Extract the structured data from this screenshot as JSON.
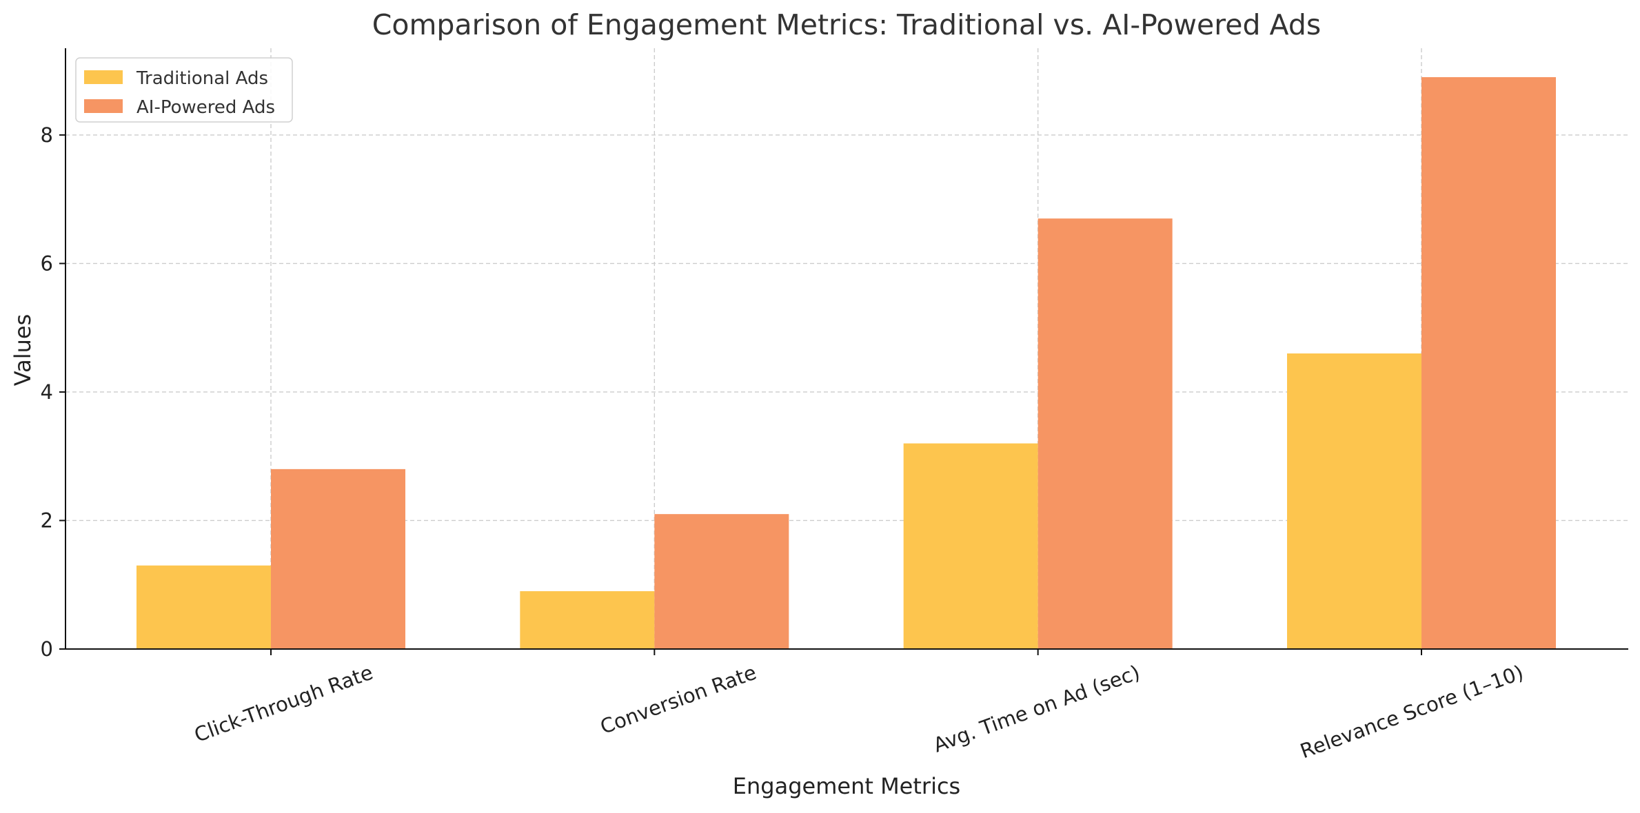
{
  "chart_data": {
    "type": "bar",
    "title": "Comparison of Engagement Metrics: Traditional vs. AI-Powered Ads",
    "xlabel": "Engagement Metrics",
    "ylabel": "Values",
    "categories": [
      "Click-Through Rate",
      "Conversion Rate",
      "Avg. Time on Ad (sec)",
      "Relevance Score (1–10)"
    ],
    "series": [
      {
        "name": "Traditional Ads",
        "values": [
          1.3,
          0.9,
          3.2,
          4.6
        ],
        "color": "#FDC54E"
      },
      {
        "name": "AI-Powered Ads",
        "values": [
          2.8,
          2.1,
          6.7,
          8.9
        ],
        "color": "#F69563"
      }
    ],
    "yticks": [
      0,
      2,
      4,
      6,
      8
    ],
    "ylim": [
      0,
      9.35
    ],
    "grid": true,
    "legend_position": "top-left"
  }
}
